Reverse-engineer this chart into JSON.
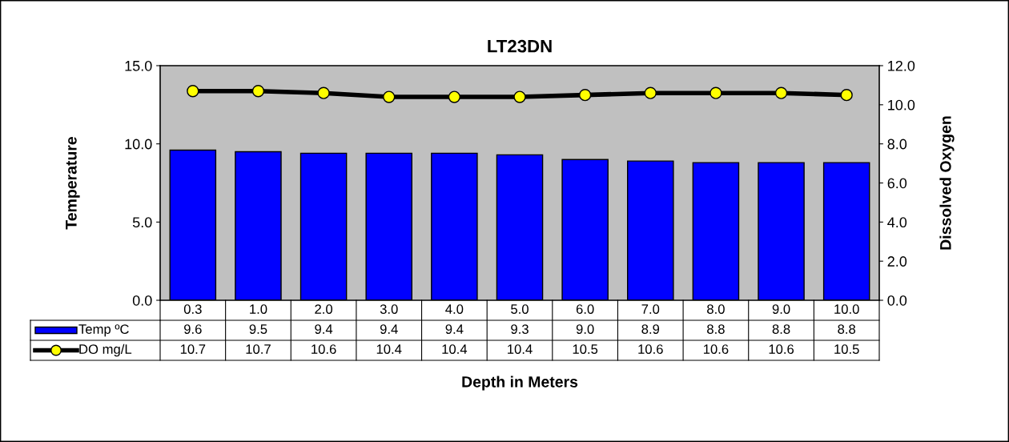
{
  "chart_data": {
    "type": "bar",
    "title": "LT23DN",
    "xlabel": "Depth in Meters",
    "ylabel": "Temperature",
    "y2label": "Dissolved Oxygen",
    "categories": [
      "0.3",
      "1.0",
      "2.0",
      "3.0",
      "4.0",
      "5.0",
      "6.0",
      "7.0",
      "8.0",
      "9.0",
      "10.0"
    ],
    "series": [
      {
        "name": "Temp ºC",
        "color": "#0000ff",
        "values": [
          9.6,
          9.5,
          9.4,
          9.4,
          9.4,
          9.3,
          9.0,
          8.9,
          8.8,
          8.8,
          8.8
        ],
        "value_labels": [
          "9.6",
          "9.5",
          "9.4",
          "9.4",
          "9.4",
          "9.3",
          "9.0",
          "8.9",
          "8.8",
          "8.8",
          "8.8"
        ]
      },
      {
        "name": "DO mg/L",
        "type": "line",
        "axis": "y2",
        "color": "#ffff00",
        "marker": "circle",
        "line_style": "solid",
        "values": [
          10.7,
          10.7,
          10.6,
          10.4,
          10.4,
          10.4,
          10.5,
          10.6,
          10.6,
          10.6,
          10.5
        ],
        "value_labels": [
          "10.7",
          "10.7",
          "10.6",
          "10.4",
          "10.4",
          "10.4",
          "10.5",
          "10.6",
          "10.6",
          "10.6",
          "10.5"
        ]
      }
    ],
    "ylim": [
      0,
      15
    ],
    "yticks": [
      {
        "value": 0,
        "label": "0.0"
      },
      {
        "value": 5,
        "label": "5.0"
      },
      {
        "value": 10,
        "label": "10.0"
      },
      {
        "value": 15,
        "label": "15.0"
      }
    ],
    "y2lim": [
      0,
      12
    ],
    "y2ticks": [
      {
        "value": 0,
        "label": "0.0"
      },
      {
        "value": 2,
        "label": "2.0"
      },
      {
        "value": 4,
        "label": "4.0"
      },
      {
        "value": 6,
        "label": "6.0"
      },
      {
        "value": 8,
        "label": "8.0"
      },
      {
        "value": 10,
        "label": "10.0"
      },
      {
        "value": 12,
        "label": "12.0"
      }
    ],
    "legend": "bottom left",
    "grid": false
  }
}
